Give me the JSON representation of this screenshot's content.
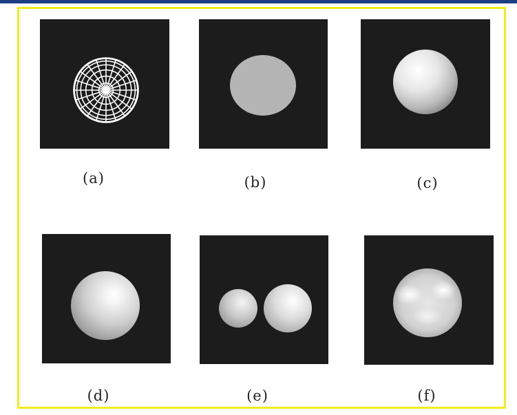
{
  "colors": {
    "frame_border": "#f2ec1c",
    "top_bar": "#1c3f86",
    "panel_background": "#1c1c1c",
    "flat_disc": "#b4b4b4",
    "wireframe": "#ffffff"
  },
  "panels": [
    {
      "id": "a",
      "caption": "(a)",
      "depicts": "wireframe-sphere-icon"
    },
    {
      "id": "b",
      "caption": "(b)",
      "depicts": "flat-disc-icon"
    },
    {
      "id": "c",
      "caption": "(c)",
      "depicts": "shaded-sphere-icon"
    },
    {
      "id": "d",
      "caption": "(d)",
      "depicts": "shaded-sphere-specular-icon"
    },
    {
      "id": "e",
      "caption": "(e)",
      "depicts": "two-shaded-spheres-icon"
    },
    {
      "id": "f",
      "caption": "(f)",
      "depicts": "multi-light-sphere-icon"
    }
  ]
}
